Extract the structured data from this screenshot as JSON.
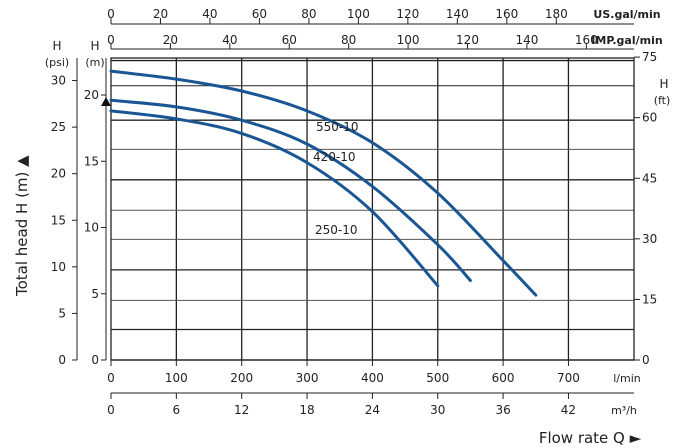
{
  "chart_data": {
    "type": "line",
    "title": "",
    "xlabel": "Flow rate  Q ►",
    "ylabel": "Total head H (m) ▲",
    "xlim": [
      0,
      800
    ],
    "ylim": [
      0,
      23.5
    ],
    "grid": true,
    "series": [
      {
        "name": "550-10",
        "x": [
          0,
          100,
          200,
          300,
          400,
          500,
          600,
          650
        ],
        "y": [
          21.8,
          21.2,
          20.3,
          18.8,
          16.4,
          12.6,
          7.5,
          4.9
        ]
      },
      {
        "name": "420-10",
        "x": [
          0,
          100,
          200,
          300,
          400,
          500,
          550
        ],
        "y": [
          19.6,
          19.1,
          18.1,
          16.3,
          13.1,
          8.7,
          6.0
        ]
      },
      {
        "name": "250-10",
        "x": [
          0,
          100,
          200,
          300,
          400,
          500
        ],
        "y": [
          18.8,
          18.2,
          17.1,
          14.9,
          11.2,
          5.6
        ]
      }
    ],
    "axes": {
      "x_lmin": {
        "unit": "l/min",
        "ticks": [
          "0",
          "100",
          "200",
          "300",
          "400",
          "500",
          "600",
          "700"
        ],
        "values": [
          0,
          100,
          200,
          300,
          400,
          500,
          600,
          700
        ]
      },
      "x_m3h": {
        "unit": "m³/h",
        "ticks": [
          "0",
          "6",
          "12",
          "18",
          "24",
          "30",
          "36",
          "42"
        ],
        "values": [
          0,
          6,
          12,
          18,
          24,
          30,
          36,
          42
        ]
      },
      "x_usgal": {
        "unit": "US.gal/min",
        "ticks": [
          "0",
          "20",
          "40",
          "60",
          "80",
          "100",
          "120",
          "140",
          "160",
          "180"
        ],
        "values": [
          0,
          20,
          40,
          60,
          80,
          100,
          120,
          140,
          160,
          180
        ]
      },
      "x_impgal": {
        "unit": "IMP.gal/min",
        "ticks": [
          "0",
          "20",
          "40",
          "60",
          "80",
          "100",
          "120",
          "140",
          "160"
        ],
        "values": [
          0,
          20,
          40,
          60,
          80,
          100,
          120,
          140,
          160
        ]
      },
      "y_m": {
        "header": "H",
        "unit": "(m)",
        "ticks": [
          "0",
          "5",
          "10",
          "15",
          "20"
        ],
        "values": [
          0,
          5,
          10,
          15,
          20
        ]
      },
      "y_psi": {
        "header": "H",
        "unit": "(psi)",
        "ticks": [
          "0",
          "5",
          "10",
          "15",
          "20",
          "25",
          "30"
        ],
        "values": [
          0,
          5,
          10,
          15,
          20,
          25,
          30
        ]
      },
      "y_ft": {
        "header": "H",
        "unit": "(ft)",
        "ticks": [
          "0",
          "15",
          "30",
          "45",
          "60",
          "75"
        ],
        "values": [
          0,
          15,
          30,
          45,
          60,
          75
        ]
      }
    }
  }
}
